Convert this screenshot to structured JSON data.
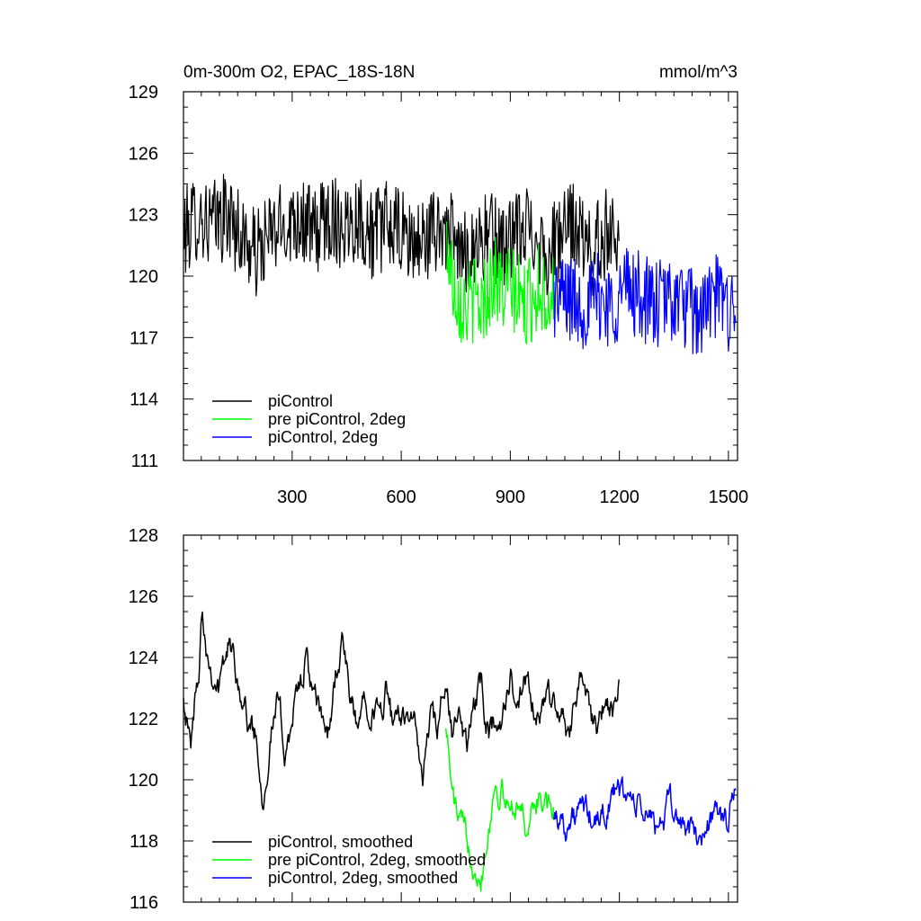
{
  "title_left": "0m-300m O2, EPAC_18S-18N",
  "title_right": "mmol/m^3",
  "colors": {
    "piControl": "#000000",
    "pre_piControl_2deg": "#00ff00",
    "piControl_2deg": "#0000ff"
  },
  "chart_data": [
    {
      "type": "line",
      "panel": "top",
      "xlim": [
        1,
        1525
      ],
      "ylim": [
        111,
        129
      ],
      "x_ticks": [
        300,
        600,
        900,
        1200,
        1500
      ],
      "x_tick_labels": [
        "300",
        "600",
        "900",
        "1200",
        "1500"
      ],
      "y_ticks": [
        111,
        114,
        117,
        120,
        123,
        126,
        129
      ],
      "y_tick_labels": [
        "111",
        "114",
        "117",
        "120",
        "123",
        "126",
        "129"
      ],
      "legend_position": "bottom-left",
      "series": [
        {
          "name": "piControl",
          "color": "#000000",
          "x": [
            1,
            40,
            80,
            120,
            160,
            200,
            240,
            280,
            320,
            360,
            400,
            440,
            480,
            520,
            560,
            600,
            640,
            680,
            720,
            760,
            800,
            840,
            880,
            920,
            960,
            1000,
            1040,
            1080,
            1120,
            1160,
            1200
          ],
          "y": [
            122.0,
            123.0,
            122.5,
            123.0,
            122.0,
            121.0,
            122.0,
            122.5,
            123.0,
            122.0,
            123.0,
            122.5,
            123.0,
            122.0,
            122.5,
            122.0,
            121.5,
            122.0,
            122.5,
            121.0,
            121.5,
            122.0,
            121.5,
            122.0,
            122.5,
            121.0,
            122.0,
            122.5,
            121.0,
            122.0,
            122.5
          ]
        },
        {
          "name": "pre piControl, 2deg",
          "color": "#00ff00",
          "x": [
            723,
            740,
            760,
            780,
            800,
            820,
            840,
            860,
            880,
            900,
            920,
            940,
            960,
            980,
            1000,
            1020
          ],
          "y": [
            122.0,
            120.0,
            119.0,
            118.5,
            119.0,
            118.5,
            119.5,
            120.0,
            119.0,
            119.5,
            119.0,
            118.5,
            119.0,
            119.5,
            119.0,
            119.0
          ]
        },
        {
          "name": "piControl, 2deg",
          "color": "#0000ff",
          "x": [
            1020,
            1060,
            1100,
            1140,
            1180,
            1220,
            1260,
            1300,
            1340,
            1380,
            1420,
            1460,
            1500,
            1520
          ],
          "y": [
            119.0,
            119.0,
            118.5,
            119.0,
            118.5,
            119.5,
            119.0,
            118.5,
            119.0,
            118.5,
            118.0,
            119.0,
            118.5,
            119.0
          ]
        }
      ]
    },
    {
      "type": "line",
      "panel": "bottom",
      "xlim": [
        1,
        1525
      ],
      "ylim": [
        116,
        128
      ],
      "x_ticks": [
        300,
        600,
        900,
        1200,
        1500
      ],
      "y_ticks": [
        116,
        118,
        120,
        122,
        124,
        126,
        128
      ],
      "y_tick_labels": [
        "116",
        "118",
        "120",
        "122",
        "124",
        "126",
        "128"
      ],
      "legend_position": "bottom-left",
      "series": [
        {
          "name": "piControl, smoothed",
          "color": "#000000",
          "x": [
            1,
            20,
            45,
            50,
            70,
            100,
            125,
            150,
            175,
            200,
            220,
            240,
            260,
            280,
            300,
            320,
            340,
            360,
            380,
            400,
            420,
            440,
            460,
            480,
            500,
            520,
            540,
            560,
            580,
            600,
            620,
            640,
            660,
            680,
            700,
            720,
            740,
            760,
            780,
            800,
            820,
            840,
            860,
            880,
            900,
            920,
            940,
            960,
            980,
            1000,
            1020,
            1040,
            1060,
            1080,
            1100,
            1120,
            1140,
            1160,
            1180,
            1200
          ],
          "y": [
            123.0,
            121.0,
            124.0,
            126.0,
            124.0,
            123.0,
            124.5,
            123.5,
            122.0,
            121.5,
            119.5,
            121.5,
            122.5,
            121.0,
            122.0,
            123.0,
            124.0,
            122.5,
            122.0,
            121.5,
            123.5,
            124.5,
            122.5,
            121.5,
            123.0,
            122.5,
            122.0,
            123.0,
            121.5,
            122.0,
            122.5,
            121.5,
            120.0,
            122.0,
            121.5,
            123.0,
            121.5,
            122.0,
            121.0,
            122.5,
            123.0,
            121.5,
            122.0,
            122.0,
            123.5,
            122.0,
            123.0,
            122.5,
            121.5,
            123.0,
            122.5,
            122.0,
            121.5,
            123.0,
            123.5,
            122.0,
            121.5,
            122.5,
            122.0,
            123.0
          ]
        },
        {
          "name": "pre piControl, 2deg, smoothed",
          "color": "#00ff00",
          "x": [
            723,
            740,
            760,
            780,
            800,
            820,
            840,
            860,
            880,
            900,
            920,
            940,
            960,
            980,
            1000,
            1020
          ],
          "y": [
            122.0,
            119.5,
            118.5,
            118.0,
            117.5,
            117.0,
            118.5,
            120.0,
            119.5,
            119.0,
            119.5,
            118.5,
            119.0,
            119.5,
            119.0,
            119.0
          ]
        },
        {
          "name": "piControl, 2deg, smoothed",
          "color": "#0000ff",
          "x": [
            1020,
            1060,
            1100,
            1140,
            1180,
            1220,
            1260,
            1300,
            1340,
            1380,
            1420,
            1460,
            1500,
            1520
          ],
          "y": [
            119.0,
            118.5,
            119.0,
            118.5,
            119.5,
            119.5,
            119.0,
            118.5,
            119.0,
            118.5,
            118.0,
            119.0,
            118.5,
            120.0
          ]
        }
      ]
    }
  ]
}
